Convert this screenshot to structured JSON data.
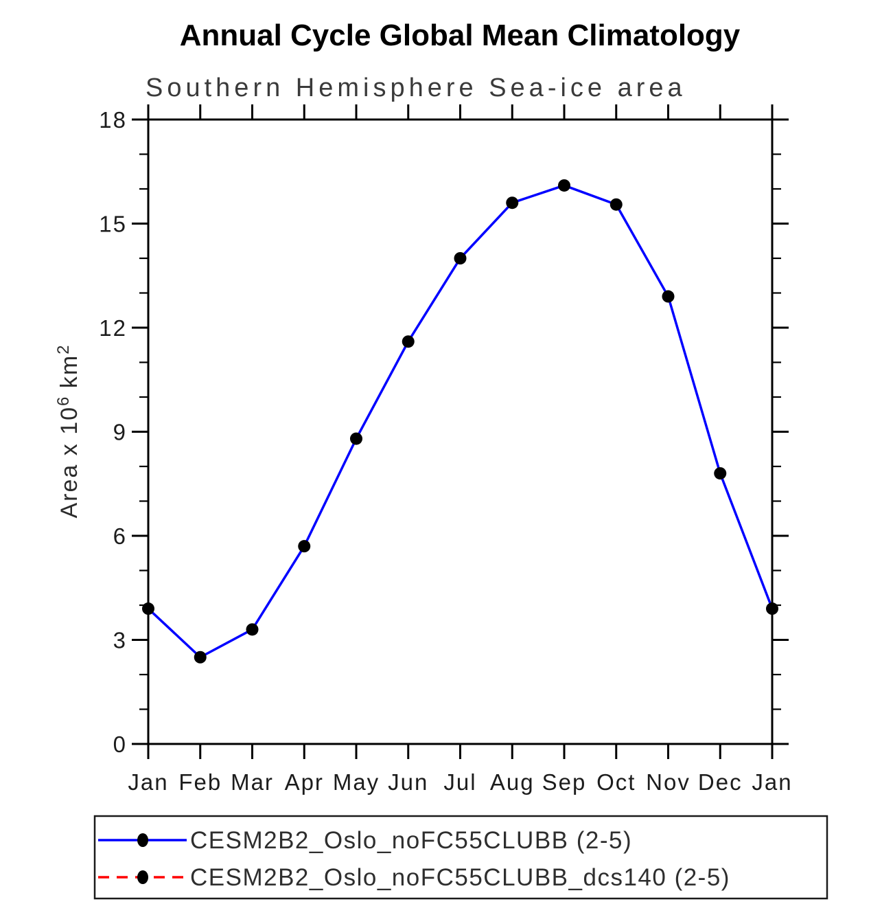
{
  "chart_data": {
    "type": "line",
    "title": "Annual Cycle Global Mean Climatology",
    "subtitle": "Southern Hemisphere Sea-ice area",
    "ylabel": "Area x 10^6 km^2",
    "ylabel_parts": {
      "prefix": "Area x 10",
      "exponent": "6",
      "unit": " km",
      "unit_exponent": "2"
    },
    "xlabel": "",
    "x_categories": [
      "Jan",
      "Feb",
      "Mar",
      "Apr",
      "May",
      "Jun",
      "Jul",
      "Aug",
      "Sep",
      "Oct",
      "Nov",
      "Dec",
      "Jan"
    ],
    "ylim": [
      0,
      18
    ],
    "ytick_labels": [
      "0",
      "3",
      "6",
      "9",
      "12",
      "15",
      "18"
    ],
    "ytick_major_step": 3,
    "ytick_minor_step": 1,
    "grid": false,
    "axis_color": "#000000",
    "series": [
      {
        "name": "CESM2B2_Oslo_noFC55CLUBB (2-5)",
        "color": "#0000ff",
        "line_style": "solid",
        "marker": "filled-circle",
        "marker_color": "#000000",
        "visible_in_plot": true,
        "values": [
          3.9,
          2.5,
          3.3,
          5.7,
          8.8,
          11.6,
          14.0,
          15.6,
          16.1,
          15.55,
          12.9,
          7.8,
          3.9
        ]
      },
      {
        "name": "CESM2B2_Oslo_noFC55CLUBB_dcs140 (2-5)",
        "color": "#ff0000",
        "line_style": "dashed",
        "marker": "filled-circle",
        "marker_color": "#000000",
        "visible_in_plot": false
      }
    ],
    "legend_position": "bottom"
  }
}
